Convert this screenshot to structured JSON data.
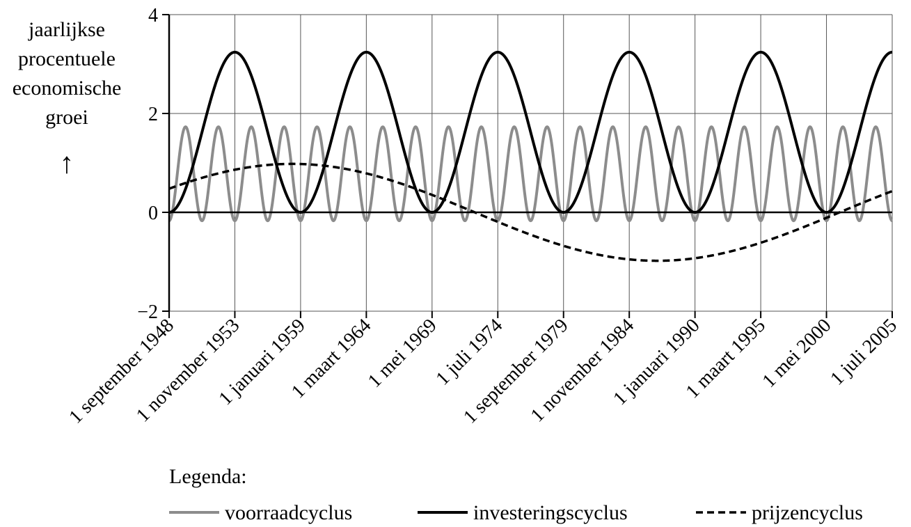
{
  "chart_data": {
    "type": "line",
    "ylabel_lines": [
      "jaarlijkse",
      "procentuele",
      "economische",
      "groei"
    ],
    "ylabel_arrow": "↑",
    "ylim": [
      -2,
      4
    ],
    "yticks": [
      -2,
      0,
      2,
      4
    ],
    "ytick_labels": [
      "−2",
      "0",
      "2",
      "4"
    ],
    "xlim": [
      0,
      11
    ],
    "x_tick_positions": [
      0,
      1,
      2,
      3,
      4,
      5,
      6,
      7,
      8,
      9,
      10,
      11
    ],
    "x_tick_labels": [
      "1 september 1948",
      "1 november 1953",
      "1 januari 1959",
      "1 maart 1964",
      "1 mei 1969",
      "1 juli 1974",
      "1 september 1979",
      "1 november 1984",
      "1 januari 1990",
      "1 maart 1995",
      "1 mei 2000",
      "1 juli 2005"
    ],
    "grid": true,
    "series": [
      {
        "name": "voorraadcyclus",
        "color": "#8c8c8c",
        "dash": "solid",
        "function": "offset - amplitude*cos(2*pi*x/period)",
        "period": 0.5,
        "amplitude": 0.95,
        "offset": 0.78
      },
      {
        "name": "investeringscyclus",
        "color": "#000000",
        "dash": "solid",
        "function": "offset - amplitude*cos(2*pi*x/period)",
        "period": 2,
        "amplitude": 1.62,
        "offset": 1.62
      },
      {
        "name": "prijzencyclus",
        "color": "#000000",
        "dash": "dashed",
        "function": "amplitude*sin(2*pi*(x - phase)/period)",
        "period": 11.1,
        "amplitude": 0.98,
        "phase": -0.9
      }
    ],
    "legend_title": "Legenda:",
    "legend_position": "bottom"
  }
}
